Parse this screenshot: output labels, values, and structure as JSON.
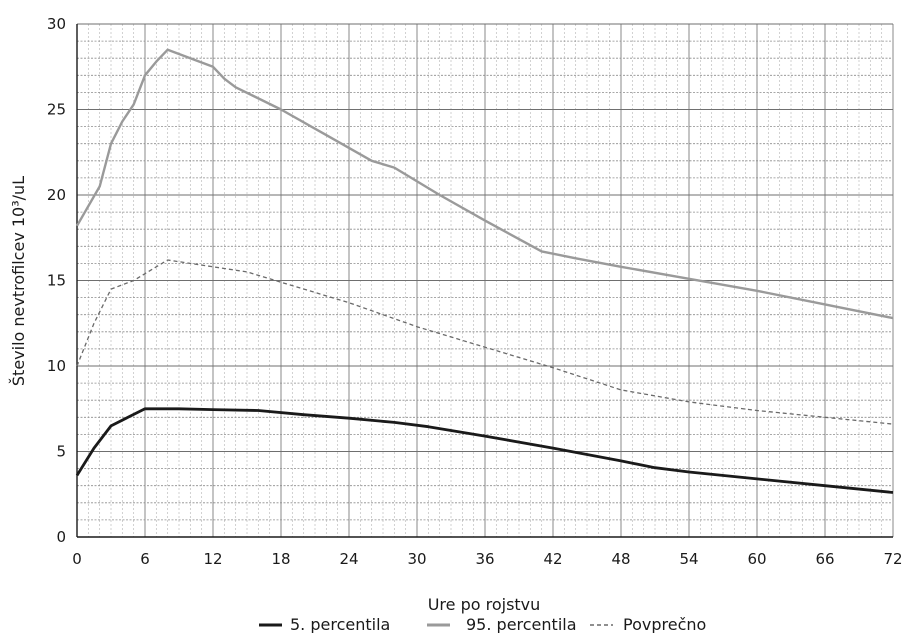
{
  "chart_data": {
    "type": "line",
    "xlabel": "Ure po rojstvu",
    "ylabel": "Število nevtrofilcev 10³/uL",
    "xlim": [
      0,
      72
    ],
    "ylim": [
      0,
      30
    ],
    "x_ticks": [
      0,
      6,
      12,
      18,
      24,
      30,
      36,
      42,
      48,
      54,
      60,
      66,
      72
    ],
    "y_ticks": [
      0,
      5,
      10,
      15,
      20,
      25,
      30
    ],
    "x_tick_labels": [
      "0",
      "6",
      "12",
      "18",
      "24",
      "30",
      "36",
      "42",
      "48",
      "54",
      "60",
      "66",
      "72"
    ],
    "y_tick_labels": [
      "0",
      "5",
      "10",
      "15",
      "20",
      "25",
      "30"
    ],
    "grid": true,
    "legend_position": "bottom",
    "series": [
      {
        "name": "5. percentila",
        "style": "solid",
        "color": "#1a1a1a",
        "points": [
          [
            0,
            3.6
          ],
          [
            1.5,
            5.2
          ],
          [
            3,
            6.5
          ],
          [
            4.5,
            7.0
          ],
          [
            6,
            7.5
          ],
          [
            9,
            7.5
          ],
          [
            12,
            7.45
          ],
          [
            16,
            7.4
          ],
          [
            20,
            7.15
          ],
          [
            24,
            6.95
          ],
          [
            28,
            6.7
          ],
          [
            31,
            6.45
          ],
          [
            36,
            5.9
          ],
          [
            42,
            5.2
          ],
          [
            48,
            4.45
          ],
          [
            51,
            4.05
          ],
          [
            54,
            3.8
          ],
          [
            60,
            3.4
          ],
          [
            66,
            3.0
          ],
          [
            72,
            2.6
          ]
        ]
      },
      {
        "name": "95. percentila",
        "style": "solid",
        "color": "#9a9a9a",
        "points": [
          [
            0,
            18.2
          ],
          [
            2,
            20.5
          ],
          [
            3,
            23.0
          ],
          [
            4,
            24.3
          ],
          [
            5,
            25.3
          ],
          [
            6,
            27.0
          ],
          [
            7,
            27.8
          ],
          [
            8,
            28.5
          ],
          [
            10,
            28.0
          ],
          [
            12,
            27.5
          ],
          [
            13,
            26.8
          ],
          [
            14,
            26.3
          ],
          [
            18,
            25.0
          ],
          [
            22,
            23.5
          ],
          [
            26,
            22.0
          ],
          [
            28,
            21.6
          ],
          [
            32,
            20.0
          ],
          [
            36,
            18.5
          ],
          [
            41,
            16.7
          ],
          [
            44,
            16.3
          ],
          [
            48,
            15.8
          ],
          [
            54,
            15.1
          ],
          [
            60,
            14.4
          ],
          [
            66,
            13.6
          ],
          [
            72,
            12.8
          ]
        ]
      },
      {
        "name": "Povprečno",
        "style": "dashed",
        "color": "#6a6a6a",
        "points": [
          [
            0,
            10.0
          ],
          [
            1.5,
            12.5
          ],
          [
            3,
            14.5
          ],
          [
            5,
            15.0
          ],
          [
            7,
            15.8
          ],
          [
            8,
            16.2
          ],
          [
            10,
            16.0
          ],
          [
            12,
            15.8
          ],
          [
            15,
            15.5
          ],
          [
            18,
            14.9
          ],
          [
            24,
            13.7
          ],
          [
            30,
            12.3
          ],
          [
            36,
            11.1
          ],
          [
            42,
            9.9
          ],
          [
            48,
            8.6
          ],
          [
            54,
            7.9
          ],
          [
            60,
            7.4
          ],
          [
            66,
            7.0
          ],
          [
            72,
            6.6
          ]
        ]
      }
    ]
  }
}
